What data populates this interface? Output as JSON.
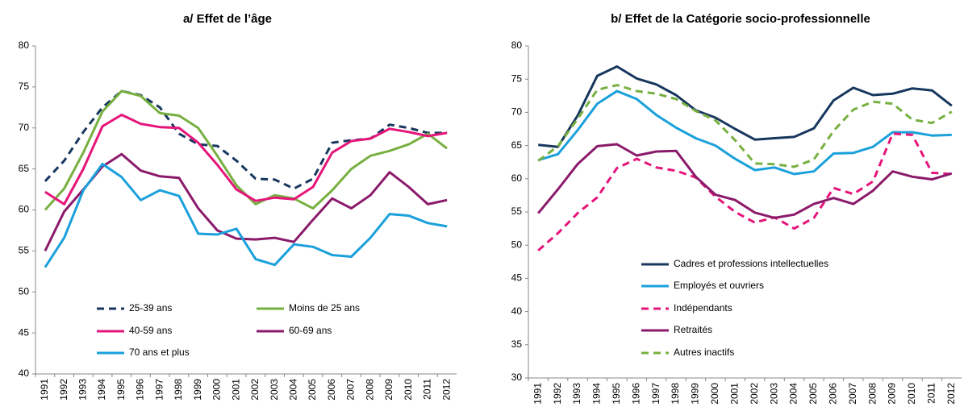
{
  "chart_data": [
    {
      "type": "line",
      "title": "a/ Effet de l’âge",
      "categories": [
        "1991",
        "1992",
        "1993",
        "1994",
        "1995",
        "1996",
        "1997",
        "1998",
        "1999",
        "2000",
        "2001",
        "2002",
        "2003",
        "2004",
        "2005",
        "2006",
        "2007",
        "2008",
        "2009",
        "2010",
        "2011",
        "2012"
      ],
      "ylim": [
        40,
        80
      ],
      "yticks": [
        40,
        45,
        50,
        55,
        60,
        65,
        70,
        75,
        80
      ],
      "grid": false,
      "series": [
        {
          "name": "25-39 ans",
          "color": "#17375e",
          "dashed": true,
          "values": [
            63.5,
            66,
            69.5,
            72.5,
            74.5,
            74,
            72.5,
            69.3,
            68,
            67.8,
            66,
            63.8,
            63.7,
            62.6,
            63.8,
            68.2,
            68.5,
            68.7,
            70.4,
            70,
            69.4,
            69.4
          ]
        },
        {
          "name": "Moins de 25 ans",
          "color": "#77b041",
          "dashed": false,
          "values": [
            60,
            62.6,
            67,
            72,
            74.5,
            73.9,
            71.8,
            71.5,
            70,
            66.6,
            63,
            60.7,
            61.8,
            61.4,
            60.2,
            62.4,
            65,
            66.6,
            67.2,
            68,
            69.3,
            67.5
          ]
        },
        {
          "name": "40-59 ans",
          "color": "#e5157a",
          "dashed": false,
          "values": [
            62.2,
            60.7,
            65,
            70.2,
            71.6,
            70.5,
            70.1,
            70,
            68.2,
            65.5,
            62.5,
            61.1,
            61.5,
            61.3,
            62.8,
            67,
            68.4,
            68.7,
            69.9,
            69.5,
            69,
            69.4
          ]
        },
        {
          "name": "60-69 ans",
          "color": "#8b1a6b",
          "dashed": false,
          "values": [
            55,
            59.8,
            62.5,
            65.3,
            66.8,
            64.8,
            64.1,
            63.9,
            60.2,
            57.5,
            56.5,
            56.4,
            56.6,
            56.1,
            58.8,
            61.4,
            60.2,
            61.8,
            64.6,
            62.8,
            60.7,
            61.2
          ]
        },
        {
          "name": "70 ans et plus",
          "color": "#1aa0db",
          "dashed": false,
          "values": [
            53,
            56.6,
            62.4,
            65.6,
            64,
            61.2,
            62.4,
            61.7,
            57.1,
            57,
            57.7,
            54,
            53.3,
            55.8,
            55.5,
            54.5,
            54.3,
            56.6,
            59.5,
            59.3,
            58.4,
            58
          ]
        }
      ]
    },
    {
      "type": "line",
      "title": "b/ Effet de la Catégorie socio-professionnelle",
      "categories": [
        "1991",
        "1992",
        "1993",
        "1994",
        "1995",
        "1996",
        "1997",
        "1998",
        "1999",
        "2000",
        "2001",
        "2002",
        "2003",
        "2004",
        "2005",
        "2006",
        "2007",
        "2008",
        "2009",
        "2010",
        "2011",
        "2012"
      ],
      "ylim": [
        30,
        80
      ],
      "yticks": [
        30,
        35,
        40,
        45,
        50,
        55,
        60,
        65,
        70,
        75,
        80
      ],
      "grid": false,
      "series": [
        {
          "name": "Cadres et professions intellectuelles",
          "color": "#17375e",
          "dashed": false,
          "values": [
            65.1,
            64.8,
            69.5,
            75.5,
            76.9,
            75.1,
            74.2,
            72.6,
            70.3,
            69.2,
            67.5,
            65.9,
            66.1,
            66.3,
            67.6,
            71.8,
            73.7,
            72.6,
            72.8,
            73.6,
            73.3,
            71
          ]
        },
        {
          "name": "Employés et ouvriers",
          "color": "#1aa0db",
          "dashed": false,
          "values": [
            62.8,
            63.7,
            67.3,
            71.3,
            73.2,
            72,
            69.6,
            67.7,
            66.1,
            65,
            63,
            61.3,
            61.7,
            60.7,
            61.1,
            63.8,
            63.9,
            64.8,
            67,
            67,
            66.5,
            66.6
          ]
        },
        {
          "name": "Indépendants",
          "color": "#e5157a",
          "dashed": true,
          "values": [
            49.2,
            51.8,
            54.8,
            57.2,
            61.6,
            63,
            61.7,
            61.2,
            60.2,
            57.3,
            55,
            53.4,
            54.2,
            52.5,
            54.1,
            58.6,
            57.7,
            59.6,
            66.8,
            66.6,
            60.9,
            60.7
          ]
        },
        {
          "name": "Retraités",
          "color": "#8b1a6b",
          "dashed": false,
          "values": [
            54.8,
            58.4,
            62.2,
            64.9,
            65.2,
            63.5,
            64.1,
            64.2,
            60.3,
            57.6,
            56.8,
            54.9,
            54.1,
            54.6,
            56.2,
            57.1,
            56.2,
            58.2,
            61.1,
            60.3,
            59.9,
            60.8
          ]
        },
        {
          "name": "Autres inactifs",
          "color": "#77b041",
          "dashed": true,
          "values": [
            62.7,
            64.9,
            69,
            73.4,
            74.1,
            73.2,
            72.8,
            72,
            70.2,
            68.8,
            65.8,
            62.3,
            62.2,
            61.8,
            62.9,
            67.2,
            70.4,
            71.6,
            71.3,
            68.9,
            68.4,
            70.1
          ]
        }
      ]
    }
  ]
}
